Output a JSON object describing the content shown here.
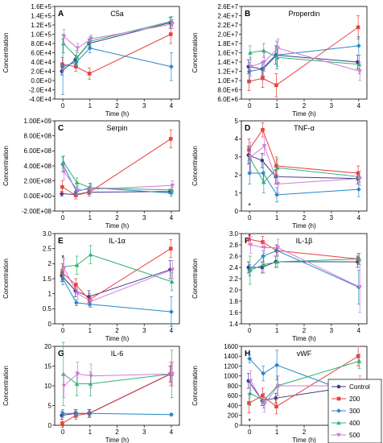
{
  "legend": {
    "series": [
      {
        "name": "Control",
        "color": "#3a3a8c"
      },
      {
        "name": "200",
        "color": "#e8413c"
      },
      {
        "name": "300",
        "color": "#2a86c8"
      },
      {
        "name": "400",
        "color": "#2fb374"
      },
      {
        "name": "500",
        "color": "#d27ad6"
      }
    ]
  },
  "chart_data": [
    {
      "id": "C5a",
      "letter": "A",
      "title": "C5a",
      "type": "line",
      "xlabel": "Time (h)",
      "ylabel": "Concentration",
      "x": [
        0,
        0.5,
        1,
        4
      ],
      "xlim": [
        -0.3,
        4.3
      ],
      "xticks": [
        0,
        1,
        2,
        3,
        4
      ],
      "ylim": [
        -40000,
        160000
      ],
      "yticks": [
        -40000,
        -20000,
        0,
        20000,
        40000,
        60000,
        80000,
        100000,
        120000,
        140000,
        160000
      ],
      "ytick_labels": [
        "-4.0E+4",
        "-2.0E+4",
        "0.0E+0",
        "2.0E+4",
        "4.0E+4",
        "6.0E+4",
        "8.0E+4",
        "1.0E+5",
        "1.2E+5",
        "1.4E+5",
        "1.6E+5"
      ],
      "series": [
        {
          "values": [
            20000,
            45000,
            80000,
            125000
          ],
          "err": [
            8000,
            10000,
            10000,
            12000
          ]
        },
        {
          "values": [
            35000,
            30000,
            15000,
            100000
          ],
          "err": [
            15000,
            10000,
            12000,
            20000
          ]
        },
        {
          "values": [
            30000,
            40000,
            70000,
            30000
          ],
          "err": [
            60000,
            10000,
            10000,
            30000
          ]
        },
        {
          "values": [
            80000,
            50000,
            85000,
            128000
          ],
          "err": [
            20000,
            15000,
            10000,
            10000
          ]
        },
        {
          "values": [
            95000,
            70000,
            90000,
            122000
          ],
          "err": [
            15000,
            10000,
            8000,
            10000
          ]
        }
      ]
    },
    {
      "id": "Properdin",
      "letter": "B",
      "title": "Properdin",
      "type": "line",
      "xlabel": "Time (h)",
      "ylabel": "Concentration",
      "x": [
        0,
        0.5,
        1,
        4
      ],
      "xlim": [
        -0.3,
        4.3
      ],
      "xticks": [
        0,
        1,
        2,
        3,
        4
      ],
      "ylim": [
        6000000,
        26000000
      ],
      "yticks": [
        6000000,
        8000000,
        10000000,
        12000000,
        14000000,
        16000000,
        18000000,
        20000000,
        22000000,
        24000000,
        26000000
      ],
      "ytick_labels": [
        "6.0E+6",
        "8.0E+6",
        "1.0E+7",
        "1.2E+7",
        "1.4E+7",
        "1.6E+7",
        "1.8E+7",
        "2.0E+7",
        "2.2E+7",
        "2.4E+7",
        "2.6E+7"
      ],
      "series": [
        {
          "values": [
            13000000,
            12500000,
            15500000,
            14000000
          ],
          "err": [
            1500000,
            1500000,
            2000000,
            1500000
          ]
        },
        {
          "values": [
            9800000,
            10500000,
            9000000,
            21500000
          ],
          "err": [
            2000000,
            2000000,
            2500000,
            2500000
          ]
        },
        {
          "values": [
            12000000,
            12500000,
            15500000,
            17500000
          ],
          "err": [
            2000000,
            1500000,
            3000000,
            2000000
          ]
        },
        {
          "values": [
            16000000,
            16500000,
            15000000,
            13500000
          ],
          "err": [
            1500000,
            1500000,
            2000000,
            2000000
          ]
        },
        {
          "values": [
            13000000,
            14000000,
            17000000,
            12000000
          ],
          "err": [
            2000000,
            2000000,
            2000000,
            2000000
          ]
        }
      ]
    },
    {
      "id": "Serpin",
      "letter": "C",
      "title": "Serpin",
      "type": "line",
      "xlabel": "Time (h)",
      "ylabel": "Concentration",
      "x": [
        0,
        0.5,
        1,
        4
      ],
      "xlim": [
        -0.3,
        4.3
      ],
      "xticks": [
        0,
        1,
        2,
        3,
        4
      ],
      "ylim": [
        -200000000,
        1000000000
      ],
      "yticks": [
        -200000000,
        0,
        200000000,
        400000000,
        600000000,
        800000000,
        1000000000
      ],
      "ytick_labels": [
        "-2.00E+08",
        "0.00E+00",
        "2.00E+08",
        "4.00E+08",
        "6.00E+08",
        "8.00E+08",
        "1.00E+09"
      ],
      "series": [
        {
          "values": [
            30000000,
            20000000,
            50000000,
            60000000
          ],
          "err": [
            30000000,
            30000000,
            30000000,
            30000000
          ]
        },
        {
          "values": [
            120000000,
            10000000,
            50000000,
            760000000
          ],
          "err": [
            80000000,
            50000000,
            50000000,
            120000000
          ]
        },
        {
          "values": [
            420000000,
            60000000,
            110000000,
            40000000
          ],
          "err": [
            100000000,
            60000000,
            60000000,
            40000000
          ]
        },
        {
          "values": [
            450000000,
            180000000,
            110000000,
            80000000
          ],
          "err": [
            80000000,
            60000000,
            60000000,
            40000000
          ]
        },
        {
          "values": [
            320000000,
            80000000,
            90000000,
            140000000
          ],
          "err": [
            100000000,
            60000000,
            60000000,
            60000000
          ]
        }
      ]
    },
    {
      "id": "TNF",
      "letter": "D",
      "title": "TNF-α",
      "type": "line",
      "xlabel": "Time (h)",
      "ylabel": "Concentration",
      "x": [
        0,
        0.5,
        1,
        4
      ],
      "xlim": [
        -0.3,
        4.3
      ],
      "xticks": [
        0,
        1,
        2,
        3,
        4
      ],
      "ylim": [
        0,
        5
      ],
      "yticks": [
        0,
        1,
        2,
        3,
        4,
        5
      ],
      "ytick_labels": [
        "0",
        "1",
        "2",
        "3",
        "4",
        "5"
      ],
      "star": {
        "x": 0,
        "y": 0.3
      },
      "series": [
        {
          "values": [
            3.1,
            2.8,
            1.9,
            1.8
          ],
          "err": [
            0.5,
            0.4,
            0.4,
            0.3
          ]
        },
        {
          "values": [
            3.4,
            4.5,
            2.5,
            2.1
          ],
          "err": [
            0.6,
            0.4,
            0.5,
            0.4
          ]
        },
        {
          "values": [
            2.1,
            2.1,
            0.9,
            1.2
          ],
          "err": [
            0.6,
            0.5,
            0.4,
            0.4
          ]
        },
        {
          "values": [
            2.9,
            1.6,
            2.4,
            1.9
          ],
          "err": [
            0.7,
            0.6,
            0.5,
            0.3
          ]
        },
        {
          "values": [
            3.0,
            3.6,
            1.5,
            1.8
          ],
          "err": [
            0.8,
            0.5,
            0.5,
            0.4
          ]
        }
      ]
    },
    {
      "id": "IL1a",
      "letter": "E",
      "title": "IL-1α",
      "type": "line",
      "xlabel": "Time (h)",
      "ylabel": "Concentration",
      "x": [
        0,
        0.5,
        1,
        4
      ],
      "xlim": [
        -0.3,
        4.3
      ],
      "xticks": [
        0,
        1,
        2,
        3,
        4
      ],
      "ylim": [
        0,
        3
      ],
      "yticks": [
        0,
        0.5,
        1,
        1.5,
        2,
        2.5,
        3
      ],
      "ytick_labels": [
        "0",
        "0.5",
        "1",
        "1.5",
        "2",
        "2.5",
        "3.0"
      ],
      "star": {
        "x": 0,
        "y": 2.2
      },
      "series": [
        {
          "values": [
            1.6,
            1.1,
            0.9,
            1.8
          ],
          "err": [
            0.2,
            0.2,
            0.2,
            0.3
          ]
        },
        {
          "values": [
            1.7,
            1.3,
            0.8,
            2.5
          ],
          "err": [
            0.3,
            0.2,
            0.2,
            0.3
          ]
        },
        {
          "values": [
            1.5,
            0.7,
            0.65,
            0.4
          ],
          "err": [
            0.2,
            0.1,
            0.1,
            0.5
          ]
        },
        {
          "values": [
            1.9,
            1.95,
            2.3,
            1.4
          ],
          "err": [
            0.3,
            0.3,
            0.3,
            0.3
          ]
        },
        {
          "values": [
            1.85,
            1.0,
            0.75,
            1.8
          ],
          "err": [
            0.3,
            0.2,
            0.2,
            0.3
          ]
        }
      ]
    },
    {
      "id": "IL1b",
      "letter": "F",
      "title": "IL-1β",
      "type": "line",
      "xlabel": "Time (h)",
      "ylabel": "Concentration",
      "x": [
        0,
        0.5,
        1,
        4
      ],
      "xlim": [
        -0.3,
        4.3
      ],
      "xticks": [
        0,
        1,
        2,
        3,
        4
      ],
      "ylim": [
        1.4,
        3.0
      ],
      "yticks": [
        1.4,
        1.6,
        1.8,
        2.0,
        2.2,
        2.4,
        2.6,
        2.8,
        3.0
      ],
      "ytick_labels": [
        "1.4",
        "1.6",
        "1.8",
        "2.0",
        "2.2",
        "2.4",
        "2.6",
        "2.8",
        "3.0"
      ],
      "star": {
        "x": 0,
        "y": 2.95
      },
      "series": [
        {
          "values": [
            2.4,
            2.4,
            2.5,
            2.5
          ],
          "err": [
            0.1,
            0.1,
            0.1,
            0.1
          ]
        },
        {
          "values": [
            2.9,
            2.85,
            2.7,
            2.55
          ],
          "err": [
            0.1,
            0.1,
            0.1,
            0.1
          ]
        },
        {
          "values": [
            2.35,
            2.6,
            2.7,
            2.05
          ],
          "err": [
            0.1,
            0.1,
            0.1,
            0.3
          ]
        },
        {
          "values": [
            2.35,
            2.45,
            2.5,
            2.55
          ],
          "err": [
            0.25,
            0.15,
            0.1,
            0.1
          ]
        },
        {
          "values": [
            2.8,
            2.75,
            2.75,
            2.05
          ],
          "err": [
            0.15,
            0.1,
            0.15,
            0.45
          ]
        }
      ]
    },
    {
      "id": "IL6",
      "letter": "G",
      "title": "IL-6",
      "type": "line",
      "xlabel": "Time (h)",
      "ylabel": "Concentration",
      "x": [
        0,
        0.5,
        1,
        4
      ],
      "xlim": [
        -0.3,
        4.3
      ],
      "xticks": [
        0,
        1,
        2,
        3,
        4
      ],
      "ylim": [
        0,
        20
      ],
      "yticks": [
        0,
        5,
        10,
        15,
        20
      ],
      "ytick_labels": [
        "0",
        "5",
        "10",
        "15",
        "20"
      ],
      "series": [
        {
          "values": [
            2.5,
            3.0,
            3.0,
            13.0
          ],
          "err": [
            1.0,
            1.0,
            1.0,
            2.0
          ]
        },
        {
          "values": [
            0.5,
            2.5,
            3.0,
            13.0
          ],
          "err": [
            1.0,
            1.0,
            1.0,
            3.0
          ]
        },
        {
          "values": [
            3.0,
            3.0,
            3.0,
            2.7
          ],
          "err": [
            1.0,
            1.0,
            1.0,
            0.3
          ]
        },
        {
          "values": [
            13.0,
            10.5,
            10.5,
            13.0
          ],
          "err": [
            8.0,
            3.0,
            3.0,
            6.0
          ]
        },
        {
          "values": [
            10.0,
            13.0,
            12.5,
            13.0
          ],
          "err": [
            3.0,
            3.0,
            3.0,
            3.0
          ]
        }
      ]
    },
    {
      "id": "vWF",
      "letter": "H",
      "title": "vWF",
      "type": "line",
      "xlabel": "Time (h)",
      "ylabel": "Concentration",
      "x": [
        0,
        0.5,
        1,
        4
      ],
      "xlim": [
        -0.3,
        4.3
      ],
      "xticks": [
        0,
        1,
        2,
        3,
        4
      ],
      "ylim": [
        0,
        1600
      ],
      "yticks": [
        0,
        200,
        400,
        600,
        800,
        1000,
        1200,
        1400,
        1600
      ],
      "ytick_labels": [
        "0",
        "200",
        "400",
        "600",
        "800",
        "1000",
        "1200",
        "1400",
        "1600"
      ],
      "star": {
        "x": 0,
        "y": 80
      },
      "series": [
        {
          "values": [
            900,
            500,
            550,
            800
          ],
          "err": [
            150,
            100,
            100,
            100
          ]
        },
        {
          "values": [
            450,
            600,
            380,
            1400
          ],
          "err": [
            200,
            150,
            150,
            200
          ]
        },
        {
          "values": [
            1350,
            1050,
            1220,
            600
          ],
          "err": [
            80,
            150,
            300,
            100
          ]
        },
        {
          "values": [
            650,
            500,
            800,
            1300
          ],
          "err": [
            250,
            150,
            200,
            150
          ]
        },
        {
          "values": [
            900,
            420,
            800,
            800
          ],
          "err": [
            200,
            150,
            200,
            200
          ]
        }
      ]
    }
  ]
}
